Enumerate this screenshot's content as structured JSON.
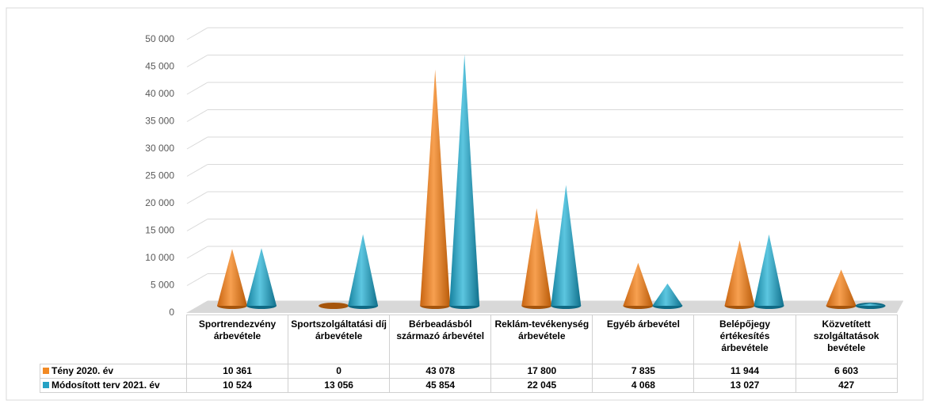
{
  "chart_data": {
    "type": "cone",
    "categories": [
      "Sportrendezvény árbevétele",
      "Sportszolgáltatási díj árbevétele",
      "Bérbeadásból származó árbevétel",
      "Reklám-tevékenység árbevétele",
      "Egyéb árbevétel",
      "Belépőjegy értékesítés árbevétele",
      "Közvetített szolgáltatások bevétele"
    ],
    "series": [
      {
        "name": "Tény 2020. év",
        "color": "#f28a24",
        "values": [
          10361,
          0,
          43078,
          17800,
          7835,
          11944,
          6603
        ],
        "value_labels": [
          "10 361",
          "0",
          "43 078",
          "17 800",
          "7 835",
          "11 944",
          "6 603"
        ]
      },
      {
        "name": "Módosított terv 2021. év",
        "color": "#26a2c4",
        "values": [
          10524,
          13056,
          45854,
          22045,
          4068,
          13027,
          427
        ],
        "value_labels": [
          "10 524",
          "13 056",
          "45 854",
          "22 045",
          "4 068",
          "13 027",
          "427"
        ]
      }
    ],
    "ylim": [
      0,
      50000
    ],
    "yticks": [
      0,
      {
        "value": 5000,
        "label": "5 000"
      },
      {
        "value": 10000,
        "label": "10 000"
      },
      {
        "value": 15000,
        "label": "15 000"
      },
      {
        "value": 20000,
        "label": "20 000"
      },
      {
        "value": 25000,
        "label": "25 000"
      },
      {
        "value": 30000,
        "label": "30 000"
      },
      {
        "value": 35000,
        "label": "35 000"
      },
      {
        "value": 40000,
        "label": "40 000"
      },
      {
        "value": 45000,
        "label": "45 000"
      },
      {
        "value": 50000,
        "label": "50 000"
      }
    ],
    "grid": true,
    "legend": "table"
  }
}
